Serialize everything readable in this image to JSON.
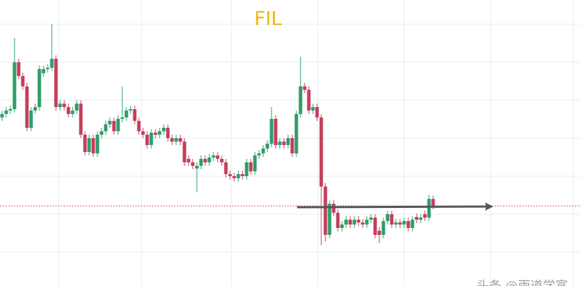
{
  "chart_data": {
    "type": "candlestick",
    "title": "FIL",
    "title_color": "#f2b705",
    "ylim": [
      0,
      414
    ],
    "up_color": "#2f9c6a",
    "down_color": "#c23f5b",
    "price_line": 116,
    "price_line_color": "#d9534f",
    "watermark": "头条 @雨道学富",
    "open": [
      244,
      249,
      254,
      256,
      324,
      304,
      289,
      229,
      254,
      259,
      308,
      314,
      316,
      329,
      259,
      264,
      259,
      249,
      254,
      264,
      219,
      194,
      214,
      192,
      219,
      224,
      234,
      239,
      224,
      242,
      244,
      254,
      256,
      239,
      224,
      219,
      204,
      222,
      219,
      224,
      229,
      214,
      209,
      214,
      209,
      184,
      179,
      170,
      174,
      184,
      179,
      186,
      189,
      184,
      179,
      162,
      159,
      156,
      162,
      159,
      179,
      166,
      189,
      192,
      199,
      206,
      242,
      204,
      209,
      204,
      214,
      192,
      249,
      289,
      284,
      254,
      259,
      244,
      144,
      74,
      119,
      106,
      84,
      89,
      96,
      89,
      96,
      92,
      89,
      96,
      99,
      80,
      74,
      94,
      104,
      89,
      92,
      89,
      94,
      84,
      100,
      96,
      104,
      99,
      126
    ],
    "high": [
      254,
      259,
      261,
      359,
      329,
      309,
      294,
      259,
      264,
      319,
      319,
      321,
      379,
      334,
      269,
      269,
      264,
      259,
      269,
      269,
      224,
      219,
      219,
      224,
      229,
      239,
      244,
      244,
      247,
      289,
      259,
      261,
      261,
      244,
      229,
      224,
      227,
      227,
      229,
      234,
      234,
      219,
      219,
      219,
      214,
      189,
      184,
      179,
      189,
      189,
      191,
      194,
      194,
      189,
      184,
      167,
      164,
      167,
      167,
      184,
      184,
      194,
      197,
      204,
      211,
      259,
      247,
      214,
      214,
      219,
      219,
      254,
      332,
      294,
      289,
      264,
      264,
      249,
      149,
      124,
      124,
      111,
      94,
      101,
      101,
      101,
      101,
      97,
      101,
      104,
      104,
      85,
      99,
      109,
      109,
      97,
      97,
      99,
      99,
      101,
      105,
      104,
      109,
      132,
      131
    ],
    "low": [
      239,
      244,
      249,
      251,
      299,
      284,
      224,
      224,
      249,
      254,
      303,
      309,
      311,
      254,
      254,
      254,
      244,
      244,
      249,
      214,
      189,
      189,
      187,
      187,
      214,
      219,
      229,
      219,
      219,
      237,
      239,
      249,
      234,
      219,
      214,
      199,
      199,
      214,
      214,
      219,
      209,
      204,
      204,
      204,
      174,
      174,
      169,
      136,
      169,
      174,
      174,
      181,
      179,
      174,
      157,
      154,
      151,
      151,
      154,
      154,
      161,
      161,
      184,
      187,
      194,
      201,
      199,
      199,
      199,
      199,
      187,
      187,
      244,
      279,
      249,
      249,
      239,
      59,
      64,
      69,
      101,
      79,
      79,
      84,
      84,
      84,
      87,
      84,
      84,
      91,
      69,
      62,
      69,
      89,
      84,
      84,
      84,
      84,
      79,
      79,
      91,
      91,
      94,
      94,
      111
    ],
    "close": [
      249,
      254,
      256,
      324,
      304,
      289,
      229,
      254,
      259,
      314,
      314,
      316,
      329,
      259,
      264,
      259,
      249,
      254,
      264,
      219,
      194,
      214,
      192,
      219,
      224,
      234,
      239,
      224,
      242,
      244,
      254,
      256,
      239,
      224,
      219,
      204,
      222,
      219,
      224,
      229,
      214,
      209,
      214,
      209,
      179,
      179,
      174,
      174,
      184,
      179,
      186,
      189,
      184,
      179,
      162,
      159,
      156,
      162,
      159,
      179,
      166,
      189,
      192,
      199,
      206,
      242,
      204,
      209,
      204,
      214,
      192,
      249,
      289,
      284,
      254,
      259,
      244,
      144,
      74,
      119,
      106,
      84,
      89,
      96,
      89,
      96,
      92,
      89,
      96,
      99,
      74,
      74,
      94,
      104,
      89,
      92,
      89,
      94,
      84,
      96,
      96,
      99,
      99,
      126,
      116
    ]
  }
}
